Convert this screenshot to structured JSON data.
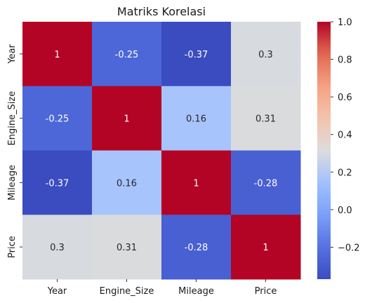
{
  "chart_data": {
    "type": "heatmap",
    "title": "Matriks Korelasi",
    "xlabel": "",
    "ylabel": "",
    "x_categories": [
      "Year",
      "Engine_Size",
      "Mileage",
      "Price"
    ],
    "y_categories": [
      "Year",
      "Engine_Size",
      "Mileage",
      "Price"
    ],
    "values": [
      [
        1,
        -0.25,
        -0.37,
        0.3
      ],
      [
        -0.25,
        1,
        0.16,
        0.31
      ],
      [
        -0.37,
        0.16,
        1,
        -0.28
      ],
      [
        0.3,
        0.31,
        -0.28,
        1
      ]
    ],
    "value_labels": [
      [
        "1",
        "-0.25",
        "-0.37",
        "0.3"
      ],
      [
        "-0.25",
        "1",
        "0.16",
        "0.31"
      ],
      [
        "-0.37",
        "0.16",
        "1",
        "-0.28"
      ],
      [
        "0.3",
        "0.31",
        "-0.28",
        "1"
      ]
    ],
    "colormap": "coolwarm",
    "color_range": [
      -0.37,
      1
    ],
    "colorbar_ticks": [
      "−0.2",
      "0.0",
      "0.2",
      "0.4",
      "0.6",
      "0.8",
      "1.0"
    ],
    "colorbar_tick_values": [
      -0.2,
      0,
      0.2,
      0.4,
      0.6,
      0.8,
      1.0
    ],
    "legend_placement": "right"
  }
}
